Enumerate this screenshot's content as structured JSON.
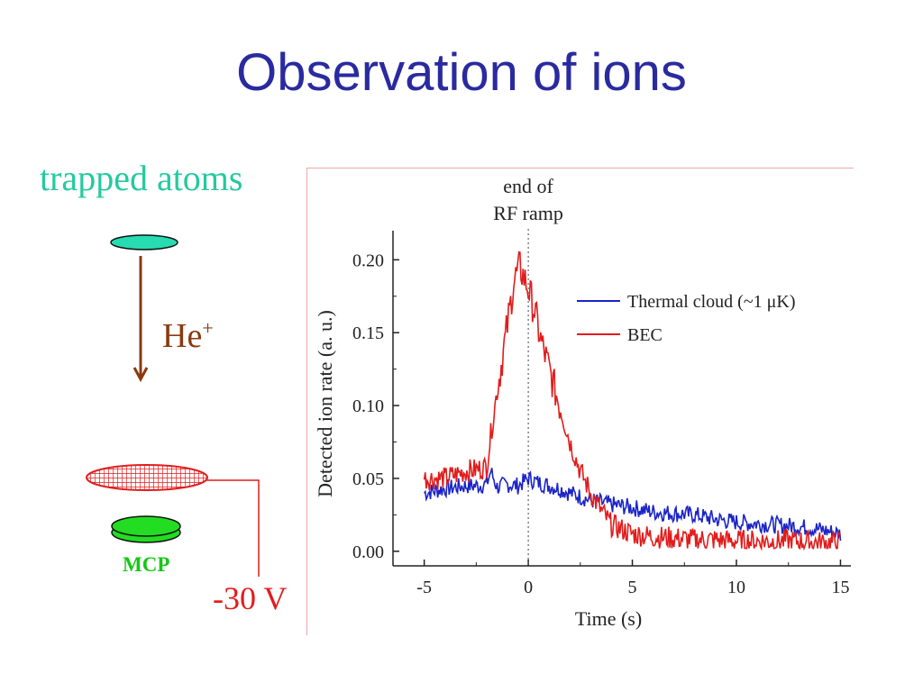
{
  "slide": {
    "title": "Observation of ions",
    "trapped_label": "trapped atoms",
    "ion_label": "He",
    "ion_charge": "+",
    "detector_label": "MCP",
    "voltage_label": "-30 V"
  },
  "colors": {
    "title": "#2a2aa0",
    "trapped_atoms": "#26c9a0",
    "ion_arrow": "#8a3a10",
    "mcp_grid": "#e21c1c",
    "mcp_body": "#22dd22",
    "thermal_series": "#1a24c8",
    "bec_series": "#e21c1c"
  },
  "chart_data": {
    "type": "line",
    "xlabel": "Time (s)",
    "ylabel": "Detected ion rate (a. u.)",
    "xlim": [
      -6.5,
      15.5
    ],
    "ylim": [
      -0.01,
      0.22
    ],
    "xticks": [
      -5,
      0,
      5,
      10,
      15
    ],
    "xtick_labels": [
      "-5",
      "0",
      "5",
      "10",
      "15"
    ],
    "yticks": [
      0.0,
      0.05,
      0.1,
      0.15,
      0.2
    ],
    "ytick_labels": [
      "0.00",
      "0.05",
      "0.10",
      "0.15",
      "0.20"
    ],
    "annotation": {
      "text": [
        "end of",
        "RF ramp"
      ],
      "x": 0
    },
    "legend_position": "top-right",
    "grid": false,
    "series": [
      {
        "name": "Thermal cloud (~1 μK)",
        "color": "#1a24c8",
        "x": [
          -5,
          -4,
          -3,
          -2.5,
          -2,
          -1.8,
          -1.5,
          -1,
          -0.5,
          0,
          0.5,
          1,
          1.5,
          2,
          3,
          4,
          5,
          6,
          7,
          8,
          9,
          10,
          11,
          12,
          13,
          14,
          15
        ],
        "y": [
          0.04,
          0.043,
          0.045,
          0.045,
          0.046,
          0.055,
          0.044,
          0.046,
          0.045,
          0.05,
          0.047,
          0.045,
          0.043,
          0.04,
          0.035,
          0.032,
          0.03,
          0.027,
          0.026,
          0.025,
          0.022,
          0.02,
          0.019,
          0.018,
          0.017,
          0.015,
          0.012
        ]
      },
      {
        "name": "BEC",
        "color": "#e21c1c",
        "x": [
          -5,
          -4,
          -3,
          -2.5,
          -2,
          -1.8,
          -1.5,
          -1,
          -0.7,
          -0.4,
          0,
          0.3,
          0.6,
          1,
          1.5,
          2,
          2.5,
          3,
          3.5,
          4,
          5,
          6,
          7,
          8,
          9,
          10,
          11,
          12,
          13,
          14,
          15
        ],
        "y": [
          0.05,
          0.05,
          0.055,
          0.056,
          0.058,
          0.08,
          0.11,
          0.155,
          0.185,
          0.195,
          0.18,
          0.165,
          0.145,
          0.125,
          0.1,
          0.075,
          0.055,
          0.04,
          0.028,
          0.018,
          0.012,
          0.01,
          0.009,
          0.008,
          0.008,
          0.007,
          0.007,
          0.007,
          0.007,
          0.006,
          0.006
        ]
      }
    ]
  }
}
